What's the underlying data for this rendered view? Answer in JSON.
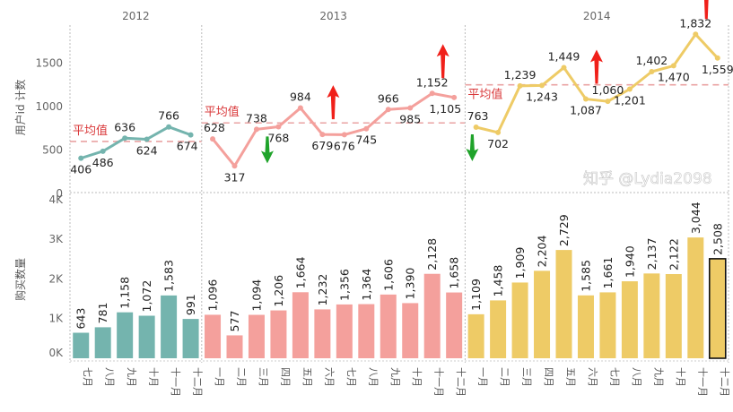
{
  "chart_data": [
    {
      "type": "line",
      "ylabel": "用户id 计数",
      "yticks": [
        "0",
        "500",
        "1000",
        "1500"
      ],
      "ylim": [
        0,
        1900
      ],
      "grid": false,
      "average_label": "平均值",
      "years": [
        {
          "year": "2012",
          "color": "#74b4ae",
          "months": [
            "七月",
            "八月",
            "九月",
            "十月",
            "十一月",
            "十二月"
          ],
          "values": [
            406,
            486,
            636,
            624,
            766,
            674
          ]
        },
        {
          "year": "2013",
          "color": "#f4a09c",
          "months": [
            "一月",
            "二月",
            "三月",
            "四月",
            "五月",
            "六月",
            "七月",
            "八月",
            "九月",
            "十月",
            "十一月",
            "十二月"
          ],
          "values": [
            628,
            317,
            738,
            768,
            984,
            679,
            676,
            745,
            966,
            985,
            1152,
            1105
          ]
        },
        {
          "year": "2014",
          "color": "#eecb66",
          "months": [
            "一月",
            "二月",
            "三月",
            "四月",
            "五月",
            "六月",
            "七月",
            "八月",
            "九月",
            "十月",
            "十一月",
            "十二月"
          ],
          "values": [
            763,
            702,
            1239,
            1243,
            1449,
            1087,
            1060,
            1201,
            1402,
            1470,
            1832,
            1559
          ]
        }
      ],
      "value_labels": {
        "2012": [
          "406",
          "486",
          "636",
          "624",
          "766",
          "674"
        ],
        "2013": [
          "628",
          "317",
          "738",
          "768",
          "984",
          "679",
          "676",
          "745",
          "966",
          "985",
          "1,152",
          "1,105"
        ],
        "2014": [
          "763",
          "702",
          "1,239",
          "1,243",
          "1,449",
          "1,087",
          "1,060",
          "1,201",
          "1,402",
          "1,470",
          "1,832",
          "1,559"
        ]
      },
      "arrows": [
        {
          "year": "2013",
          "month": "三月",
          "direction": "down",
          "color": "#1fa32a"
        },
        {
          "year": "2013",
          "month": "六月",
          "direction": "up",
          "color": "#f0201a"
        },
        {
          "year": "2013",
          "month": "十一月",
          "direction": "up",
          "color": "#f0201a"
        },
        {
          "year": "2014",
          "month": "一月",
          "direction": "down",
          "color": "#1fa32a"
        },
        {
          "year": "2014",
          "month": "六月",
          "direction": "up",
          "color": "#f0201a"
        },
        {
          "year": "2014",
          "month": "十一月",
          "direction": "up",
          "color": "#f0201a"
        }
      ]
    },
    {
      "type": "bar",
      "ylabel": "购买数量",
      "yticks": [
        "0K",
        "1K",
        "2K",
        "3K",
        "4K"
      ],
      "ylim": [
        0,
        4000
      ],
      "grid": false,
      "years": [
        {
          "year": "2012",
          "values": [
            643,
            781,
            1158,
            1072,
            1583,
            991
          ],
          "labels": [
            "643",
            "781",
            "1,158",
            "1,072",
            "1,583",
            "991"
          ]
        },
        {
          "year": "2013",
          "values": [
            1096,
            577,
            1094,
            1206,
            1664,
            1232,
            1356,
            1364,
            1606,
            1390,
            2128,
            1658
          ],
          "labels": [
            "1,096",
            "577",
            "1,094",
            "1,206",
            "1,664",
            "1,232",
            "1,356",
            "1,364",
            "1,606",
            "1,390",
            "2,128",
            "1,658"
          ]
        },
        {
          "year": "2014",
          "values": [
            1109,
            1458,
            1909,
            2204,
            2729,
            1585,
            1661,
            1940,
            2137,
            2122,
            3044,
            2508
          ],
          "labels": [
            "1,109",
            "1,458",
            "1,909",
            "2,204",
            "2,729",
            "1,585",
            "1,661",
            "1,940",
            "2,137",
            "2,122",
            "3,044",
            "2,508"
          ]
        }
      ],
      "selected": {
        "year": "2014",
        "month": "十二月"
      }
    }
  ],
  "watermark": "知乎 @Lydia2098"
}
